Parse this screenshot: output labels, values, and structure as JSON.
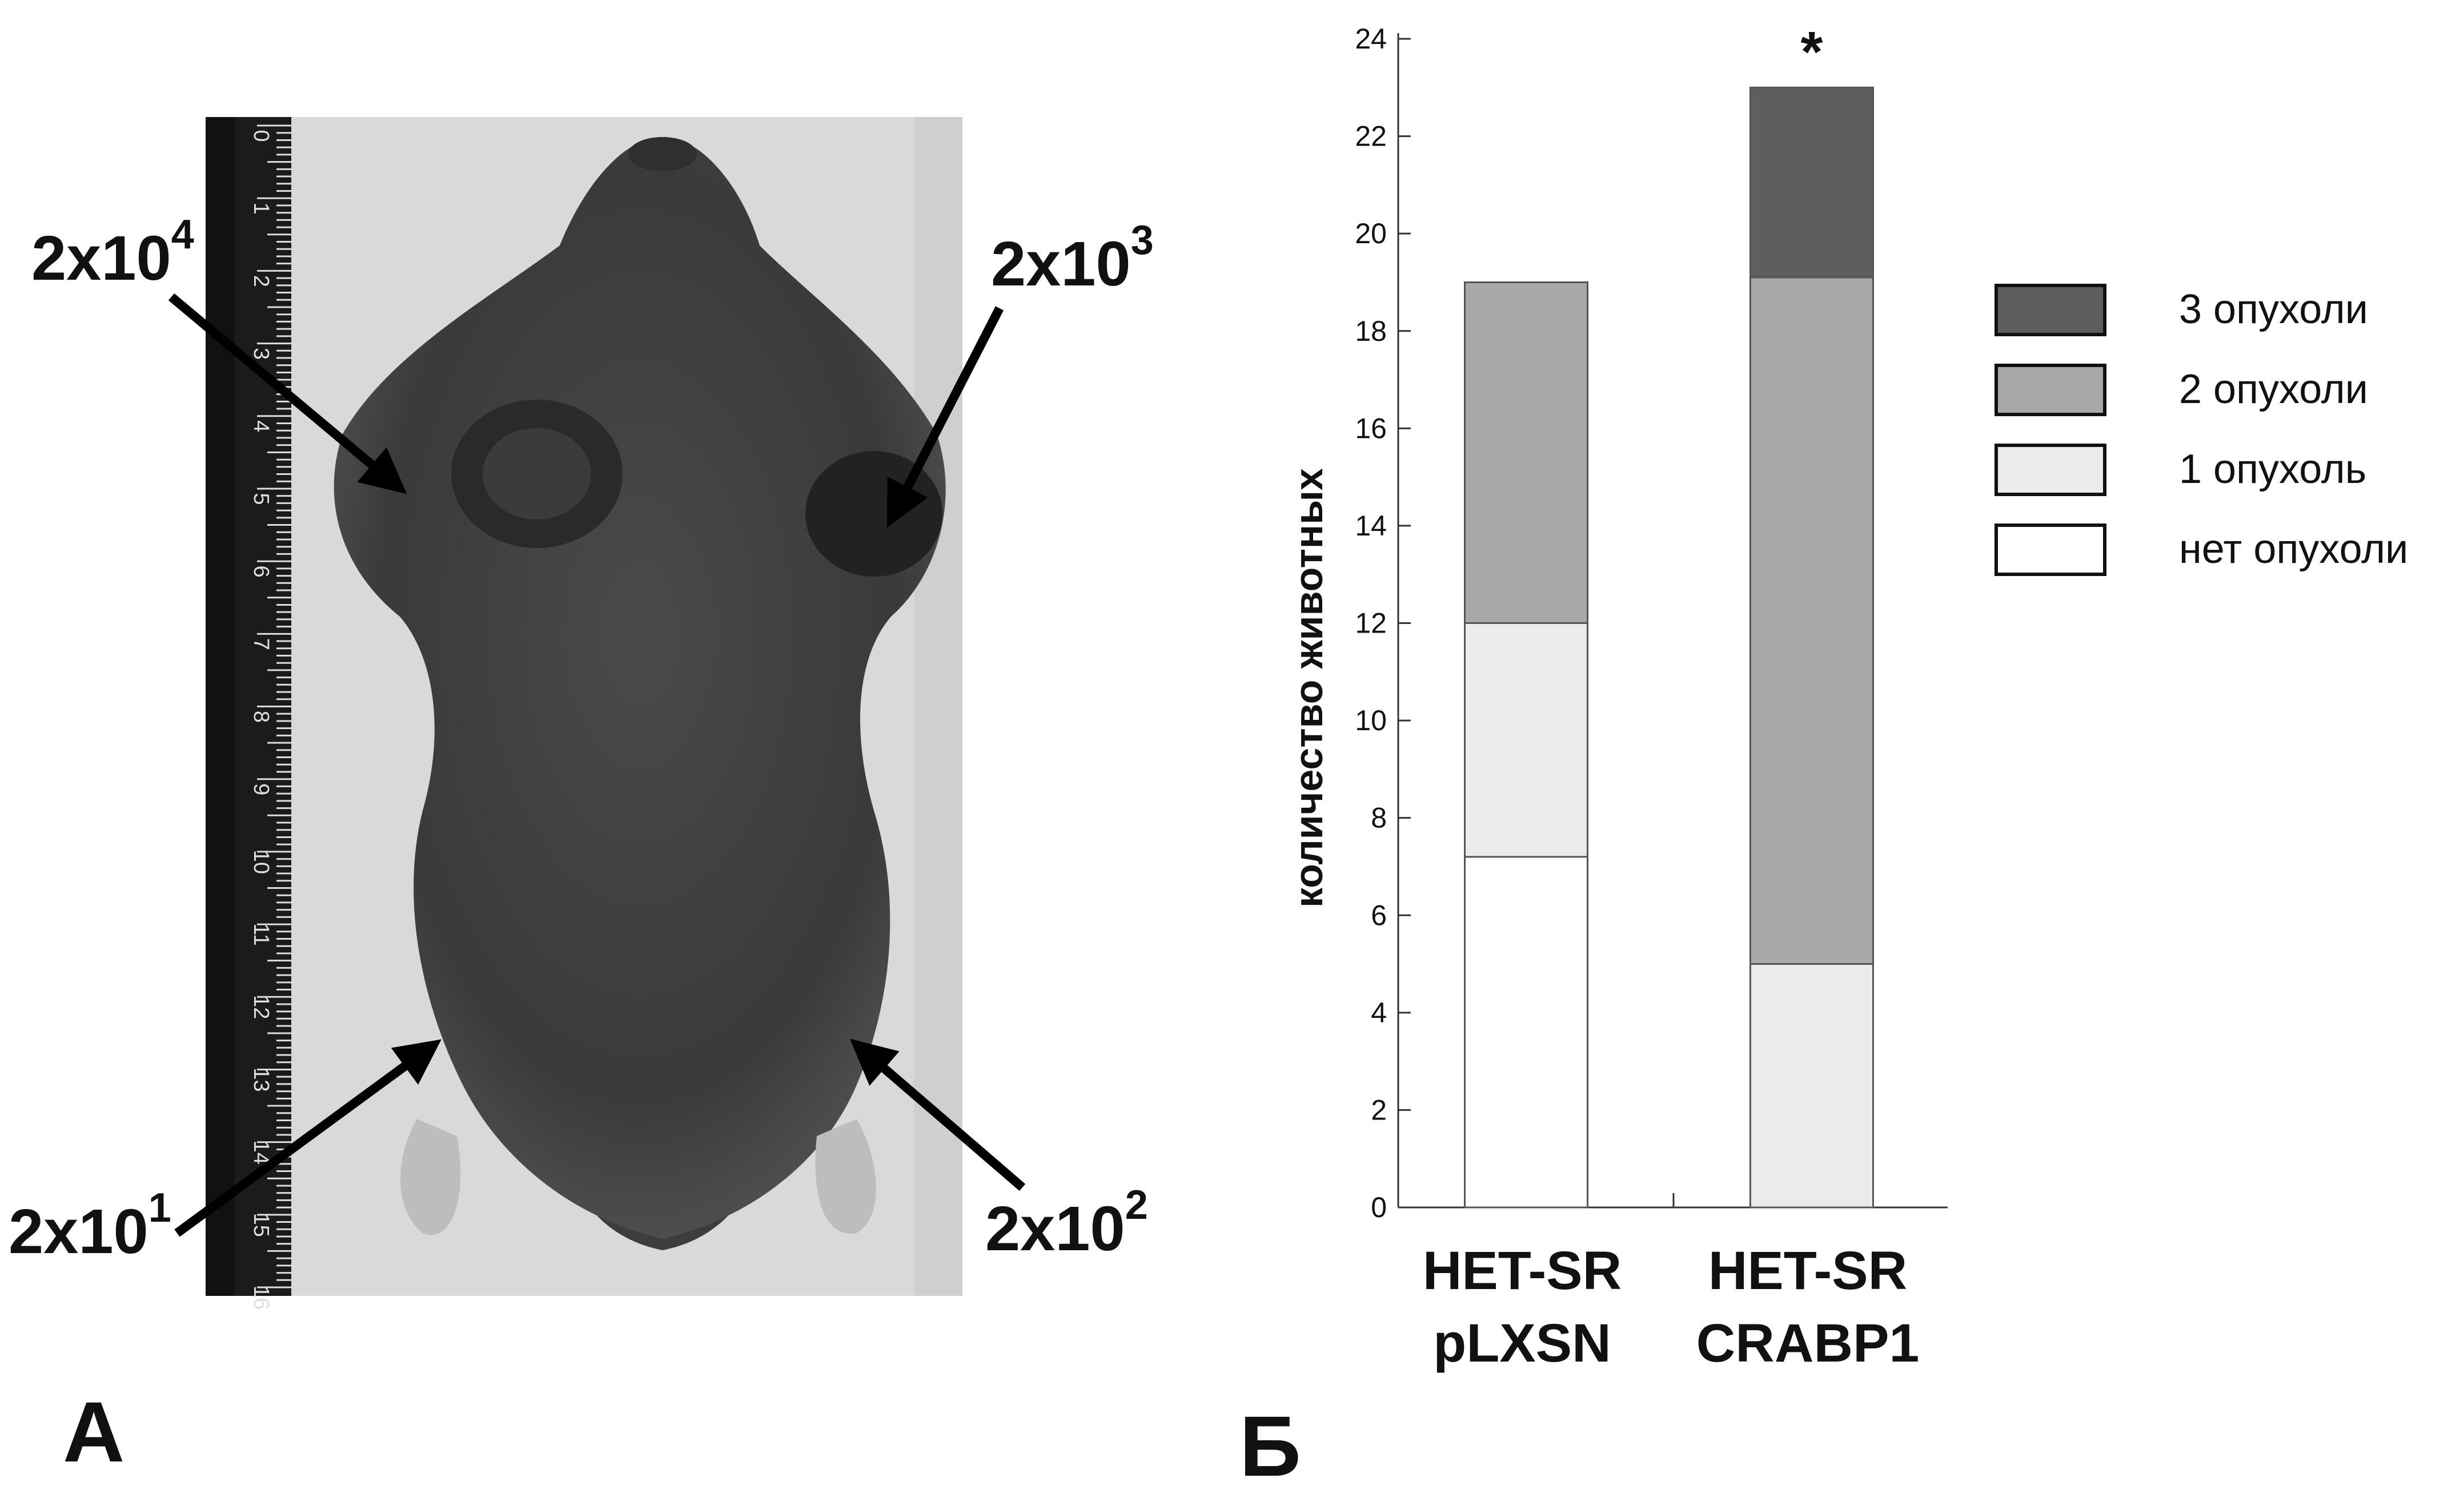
{
  "panel_a": {
    "letter": "А",
    "labels": [
      {
        "id": "tl",
        "base": "2x10",
        "exp": "4"
      },
      {
        "id": "tr",
        "base": "2x10",
        "exp": "3"
      },
      {
        "id": "bl",
        "base": "2x10",
        "exp": "1"
      },
      {
        "id": "br",
        "base": "2x10",
        "exp": "2"
      }
    ],
    "ruler_marks": [
      "0",
      "1",
      "2",
      "3",
      "4",
      "5",
      "6",
      "7",
      "8",
      "9",
      "10",
      "11",
      "12",
      "13",
      "14",
      "15",
      "16"
    ]
  },
  "panel_b": {
    "letter": "Б",
    "significance_marker": "*"
  },
  "chart_data": {
    "type": "bar",
    "stacked": true,
    "categories": [
      {
        "line1": "HET-SR",
        "line2": "pLXSN"
      },
      {
        "line1": "HET-SR",
        "line2": "CRABP1"
      }
    ],
    "ylabel": "количество животных",
    "ylim": [
      0,
      24
    ],
    "yticks": [
      0,
      2,
      4,
      6,
      8,
      10,
      12,
      14,
      16,
      18,
      20,
      22,
      24
    ],
    "grid": false,
    "legend_position": "right",
    "series": [
      {
        "name": "нет опухоли",
        "color": "#ffffff",
        "values": [
          7.2,
          0
        ]
      },
      {
        "name": "1 опухоль",
        "color": "#ebebeb",
        "values": [
          4.8,
          5
        ]
      },
      {
        "name": "2  опухоли",
        "color": "#a8a8a8",
        "values": [
          7,
          14.1
        ]
      },
      {
        "name": "3 опухоли",
        "color": "#5e5e5e",
        "values": [
          0,
          3.9
        ]
      }
    ],
    "legend_order": [
      "3 опухоли",
      "2  опухоли",
      "1 опухоль",
      "нет опухоли"
    ]
  }
}
